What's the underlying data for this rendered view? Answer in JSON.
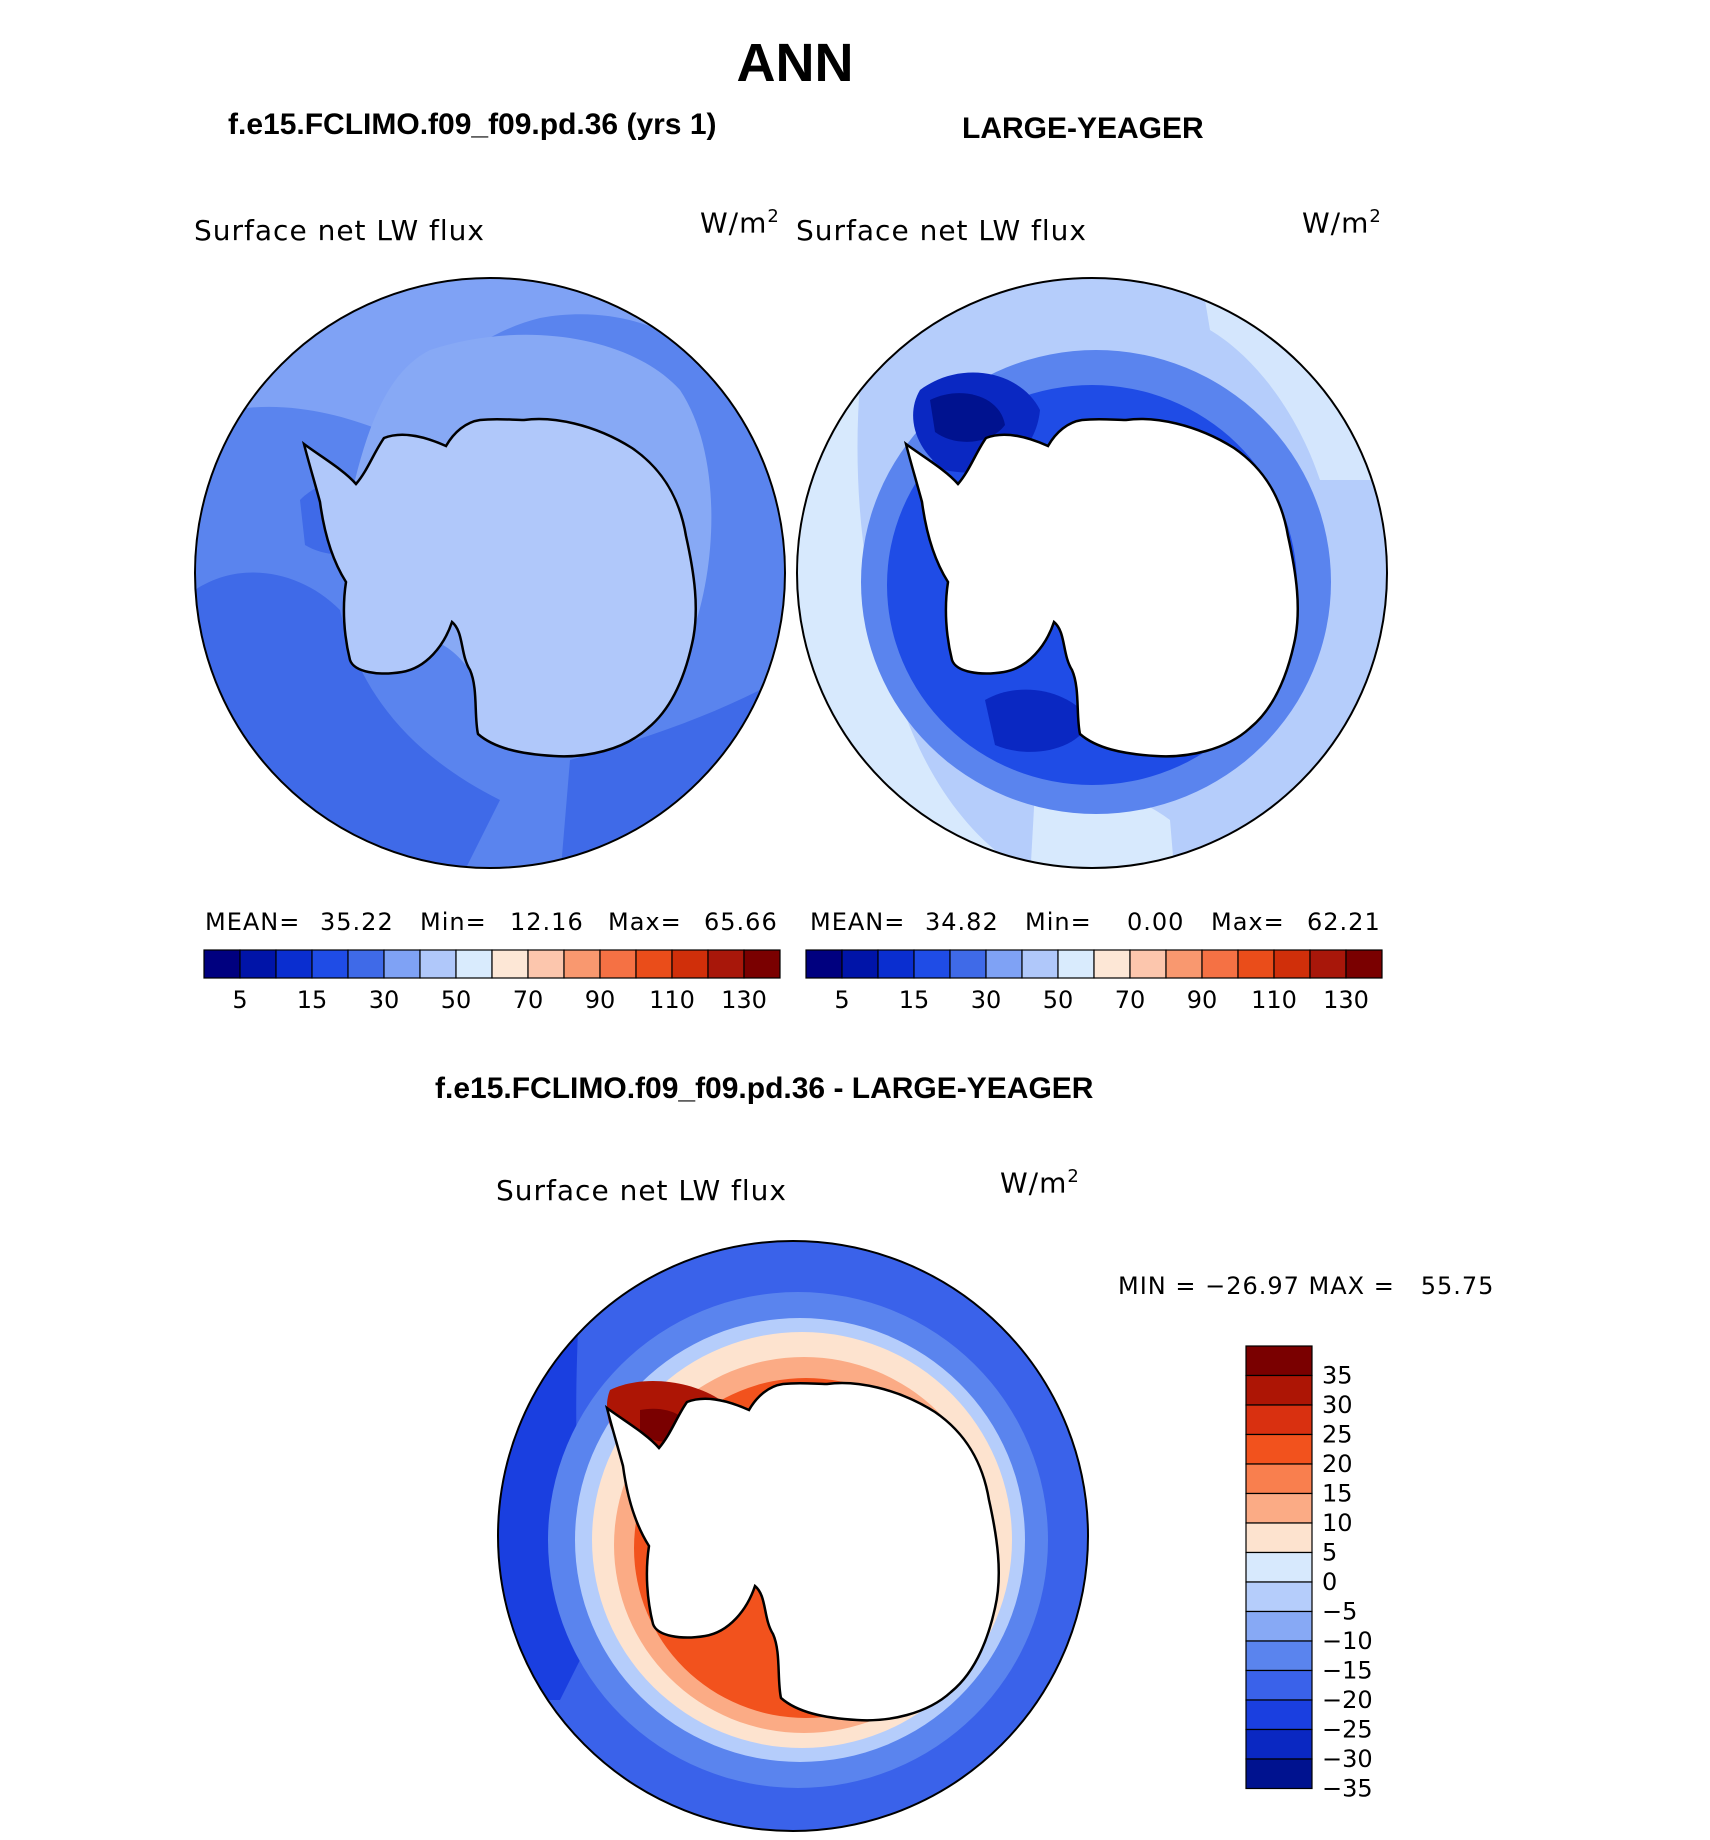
{
  "page_title": "ANN",
  "panels": [
    {
      "id": "model",
      "header": "f.e15.FCLIMO.f09_f09.pd.36 (yrs 1)",
      "variable": "Surface net LW flux",
      "units": "W/m",
      "units_exp": "2",
      "stats": {
        "mean_label": "MEAN=",
        "mean": "35.22",
        "min_label": "Min=",
        "min": "12.16",
        "max_label": "Max=",
        "max": "65.66"
      }
    },
    {
      "id": "obs",
      "header": "LARGE-YEAGER",
      "variable": "Surface net LW flux",
      "units": "W/m",
      "units_exp": "2",
      "stats": {
        "mean_label": "MEAN=",
        "mean": "34.82",
        "min_label": "Min=",
        "min": "0.00",
        "max_label": "Max=",
        "max": "62.21"
      }
    }
  ],
  "shared_colorbar": {
    "colors": [
      "#00007f",
      "#0014a8",
      "#0a2ed0",
      "#1f4ce6",
      "#3f6ae8",
      "#7fa2f5",
      "#b0c8fa",
      "#d9ebfd",
      "#fde7d6",
      "#fcc6ad",
      "#f9986f",
      "#f57144",
      "#ea4d1a",
      "#d02f0a",
      "#a8170a",
      "#7a0000"
    ],
    "tick_labels": [
      "5",
      "15",
      "30",
      "50",
      "70",
      "90",
      "110",
      "130"
    ]
  },
  "difference": {
    "header": "f.e15.FCLIMO.f09_f09.pd.36 - LARGE-YEAGER",
    "variable": "Surface net LW flux",
    "units": "W/m",
    "units_exp": "2",
    "minmax_text": "MIN = −26.97 MAX =   55.75",
    "colorbar_colors_top_to_bottom": [
      "#7a0000",
      "#ad1505",
      "#d93010",
      "#f2521d",
      "#f97f4e",
      "#fbab85",
      "#fde3cf",
      "#d7e9fd",
      "#b5cdfb",
      "#87a9f5",
      "#5a84ee",
      "#3a62ea",
      "#1a3fe0",
      "#0a28c2",
      "#00128f"
    ],
    "colorbar_labels_top_to_bottom": [
      "35",
      "30",
      "25",
      "20",
      "15",
      "10",
      "5",
      "0",
      "−5",
      "−10",
      "−15",
      "−20",
      "−25",
      "−30",
      "−35"
    ]
  }
}
